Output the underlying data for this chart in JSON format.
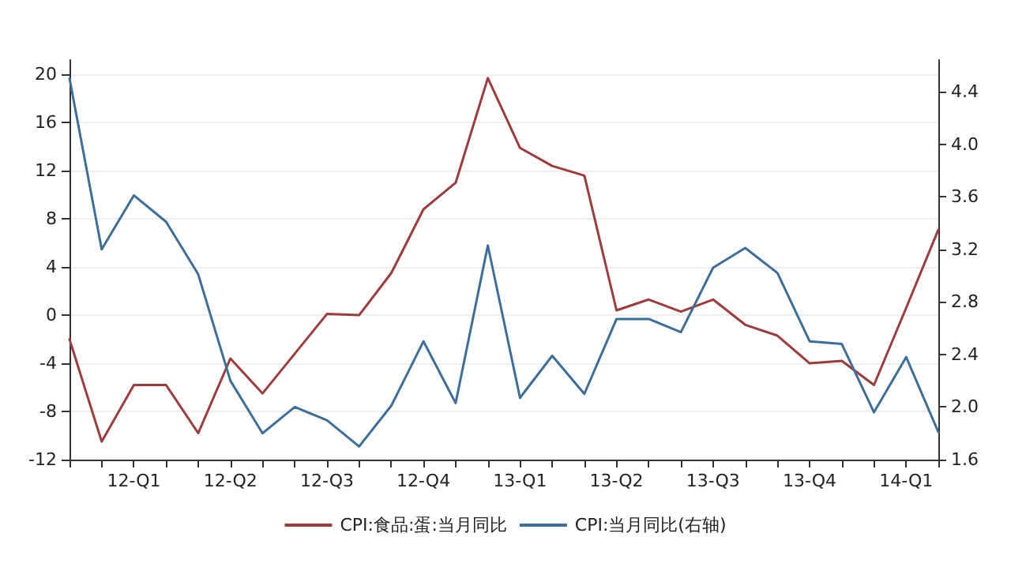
{
  "chart_data": {
    "type": "line",
    "categories": [
      null,
      null,
      "12-Q1",
      null,
      null,
      "12-Q2",
      null,
      null,
      "12-Q3",
      null,
      null,
      "12-Q4",
      null,
      null,
      "13-Q1",
      null,
      null,
      "13-Q2",
      null,
      null,
      "13-Q3",
      null,
      null,
      "13-Q4",
      null,
      null,
      "14-Q1",
      null
    ],
    "series": [
      {
        "name": "CPI:食品:蛋:当月同比",
        "color": "#9e3b3b",
        "values": [
          -2.0,
          -10.5,
          -5.8,
          -5.8,
          -9.8,
          -3.6,
          -6.5,
          -3.2,
          0.1,
          0.0,
          3.5,
          8.8,
          11.0,
          19.7,
          13.9,
          12.4,
          11.6,
          0.4,
          1.3,
          0.3,
          1.3,
          -0.8,
          -1.7,
          -4.0,
          -3.8,
          -5.8,
          0.6,
          7.1
        ]
      },
      {
        "name": "CPI:当月同比(右轴)",
        "color": "#3d6e99",
        "axis": "y2",
        "values": [
          4.5,
          3.2,
          3.61,
          3.41,
          3.01,
          2.2,
          1.8,
          2.0,
          1.9,
          1.7,
          2.01,
          2.5,
          2.03,
          3.23,
          2.07,
          2.39,
          2.1,
          2.67,
          2.67,
          2.57,
          3.06,
          3.21,
          3.02,
          2.5,
          2.48,
          1.96,
          2.38,
          1.81
        ]
      }
    ],
    "ylim": [
      -12,
      21.2
    ],
    "yticks": [
      -12,
      -8,
      -4,
      0,
      4,
      8,
      12,
      16,
      20
    ],
    "y2lim": [
      1.6,
      4.64
    ],
    "y2ticks": [
      1.6,
      {
        "value": 2,
        "label": "2.0"
      },
      2.4,
      2.8,
      3.2,
      3.6,
      {
        "value": 4,
        "label": "4.0"
      },
      4.4
    ],
    "grid": "y",
    "legend": "bottom",
    "marker": "none",
    "line_style": "solid"
  }
}
